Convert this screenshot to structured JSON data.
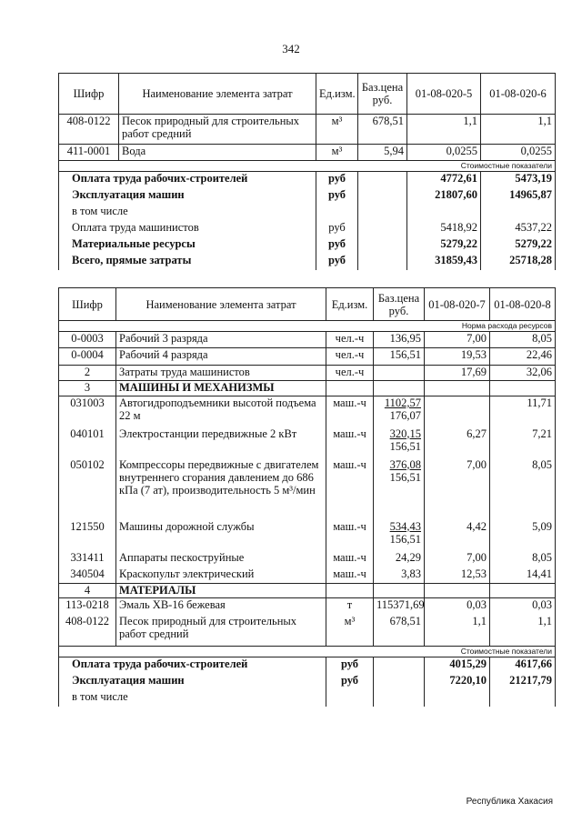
{
  "page_number": "342",
  "footer": "Республика Хакасия",
  "table1": {
    "headers": [
      "Шифр",
      "Наименование элемента затрат",
      "Ед.изм.",
      "Баз.цена руб.",
      "01-08-020-5",
      "01-08-020-6"
    ],
    "rows": [
      {
        "code": "408-0122",
        "name": "Песок природный для строительных работ средний",
        "unit": "м³",
        "price": "678,51",
        "v1": "1,1",
        "v2": "1,1"
      },
      {
        "code": "411-0001",
        "name": "Вода",
        "unit": "м³",
        "price": "5,94",
        "v1": "0,0255",
        "v2": "0,0255"
      }
    ],
    "section_note": "Стоимостные показатели",
    "totals": [
      {
        "name": "Оплата труда рабочих-строителей",
        "unit": "руб",
        "v1": "4772,61",
        "v2": "5473,19",
        "bold": true
      },
      {
        "name": "Эксплуатация машин",
        "unit": "руб",
        "v1": "21807,60",
        "v2": "14965,87",
        "bold": true
      },
      {
        "name": "в том числе",
        "unit": "",
        "v1": "",
        "v2": "",
        "bold": false
      },
      {
        "name": "Оплата труда машинистов",
        "unit": "руб",
        "v1": "5418,92",
        "v2": "4537,22",
        "bold": false
      },
      {
        "name": "Материальные ресурсы",
        "unit": "руб",
        "v1": "5279,22",
        "v2": "5279,22",
        "bold": true
      },
      {
        "name": "Всего, прямые затраты",
        "unit": "руб",
        "v1": "31859,43",
        "v2": "25718,28",
        "bold": true
      }
    ]
  },
  "table2": {
    "headers": [
      "Шифр",
      "Наименование элемента затрат",
      "Ед.изм.",
      "Баз.цена руб.",
      "01-08-020-7",
      "01-08-020-8"
    ],
    "norm_note": "Норма расхода ресурсов",
    "rows": [
      {
        "code": "0-0003",
        "name": "Рабочий 3 разряда",
        "unit": "чел.-ч",
        "price": "136,95",
        "v1": "7,00",
        "v2": "8,05"
      },
      {
        "code": "0-0004",
        "name": "Рабочий 4 разряда",
        "unit": "чел.-ч",
        "price": "156,51",
        "v1": "19,53",
        "v2": "22,46"
      },
      {
        "code": "2",
        "name": "Затраты труда машинистов",
        "unit": "чел.-ч",
        "price": "",
        "v1": "17,69",
        "v2": "32,06"
      },
      {
        "code": "3",
        "name": "МАШИНЫ И МЕХАНИЗМЫ",
        "unit": "",
        "price": "",
        "v1": "",
        "v2": "",
        "section": true
      },
      {
        "code": "031003",
        "name": "Автогидроподъемники высотой подъема 22 м",
        "unit": "маш.-ч",
        "price": "1102,57",
        "price2": "176,07",
        "v1": "",
        "v2": "11,71"
      },
      {
        "code": "040101",
        "name": "Электростанции передвижные 2 кВт",
        "unit": "маш.-ч",
        "price": "320,15",
        "price2": "156,51",
        "v1": "6,27",
        "v2": "7,21"
      },
      {
        "code": "050102",
        "name": "Компрессоры передвижные с двигателем внутреннего сгорания давлением до 686 кПа (7 ат), производительность 5 м³/мин",
        "unit": "маш.-ч",
        "price": "376,08",
        "price2": "156,51",
        "v1": "7,00",
        "v2": "8,05"
      },
      {
        "code": "121550",
        "name": "Машины дорожной службы",
        "unit": "маш.-ч",
        "price": "534,43",
        "price2": "156,51",
        "v1": "4,42",
        "v2": "5,09"
      },
      {
        "code": "331411",
        "name": "Аппараты пескоструйные",
        "unit": "маш.-ч",
        "price": "24,29",
        "v1": "7,00",
        "v2": "8,05"
      },
      {
        "code": "340504",
        "name": "Краскопульт электрический",
        "unit": "маш.-ч",
        "price": "3,83",
        "v1": "12,53",
        "v2": "14,41"
      },
      {
        "code": "4",
        "name": "МАТЕРИАЛЫ",
        "unit": "",
        "price": "",
        "v1": "",
        "v2": "",
        "section": true
      },
      {
        "code": "113-0218",
        "name": "Эмаль ХВ-16 бежевая",
        "unit": "т",
        "price": "115371,69",
        "v1": "0,03",
        "v2": "0,03"
      },
      {
        "code": "408-0122",
        "name": "Песок природный для строительных работ средний",
        "unit": "м³",
        "price": "678,51",
        "v1": "1,1",
        "v2": "1,1"
      }
    ],
    "section_note": "Стоимостные показатели",
    "totals": [
      {
        "name": "Оплата труда рабочих-строителей",
        "unit": "руб",
        "v1": "4015,29",
        "v2": "4617,66",
        "bold": true
      },
      {
        "name": "Эксплуатация машин",
        "unit": "руб",
        "v1": "7220,10",
        "v2": "21217,79",
        "bold": true
      },
      {
        "name": "в том числе",
        "unit": "",
        "v1": "",
        "v2": "",
        "bold": false
      }
    ]
  }
}
